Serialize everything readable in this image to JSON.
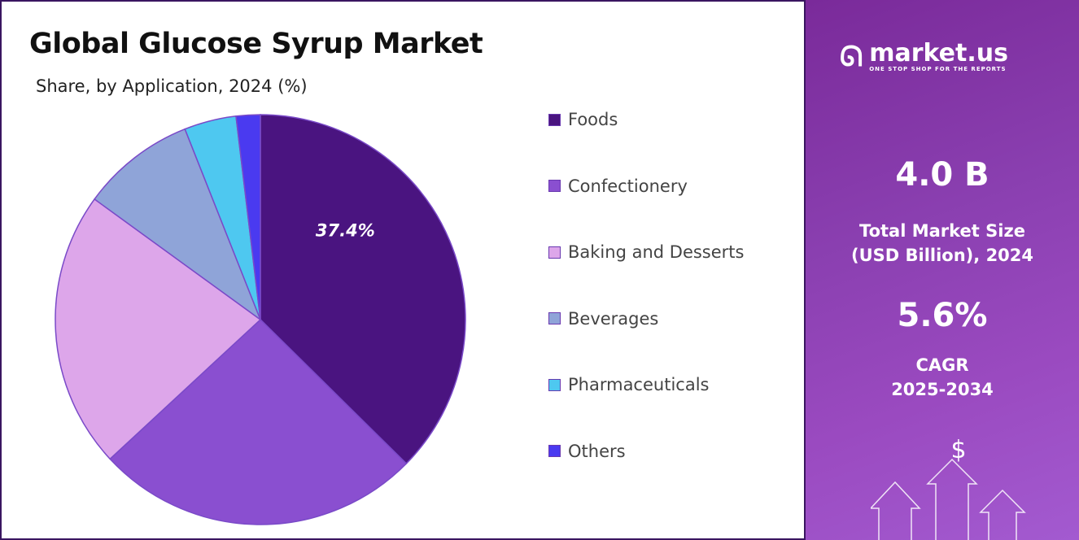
{
  "chart_data": {
    "type": "pie",
    "title": "Global Glucose Syrup Market",
    "subtitle": "Share, by Application, 2024 (%)",
    "categories": [
      "Foods",
      "Confectionery",
      "Baking and Desserts",
      "Beverages",
      "Pharmaceuticals",
      "Others"
    ],
    "values": [
      37.4,
      25.7,
      21.9,
      9.0,
      4.1,
      1.9
    ],
    "colors": [
      "#4a1480",
      "#8a4fd0",
      "#dda6ea",
      "#8fa4d8",
      "#4ec8f0",
      "#4a3af0"
    ],
    "data_labels": [
      "37.4%",
      "",
      "",
      "",
      "",
      ""
    ],
    "start_angle": "12 o'clock, clockwise",
    "legend_position": "right"
  },
  "sidebar": {
    "logo_name": "market.us",
    "logo_tagline": "ONE STOP SHOP FOR THE REPORTS",
    "market_size_value": "4.0 B",
    "market_size_label_1": "Total Market Size",
    "market_size_label_2": "(USD Billion), 2024",
    "cagr_value": "5.6%",
    "cagr_label": "CAGR",
    "cagr_period": "2025-2034",
    "icon": "dollar-arrows-icon"
  }
}
